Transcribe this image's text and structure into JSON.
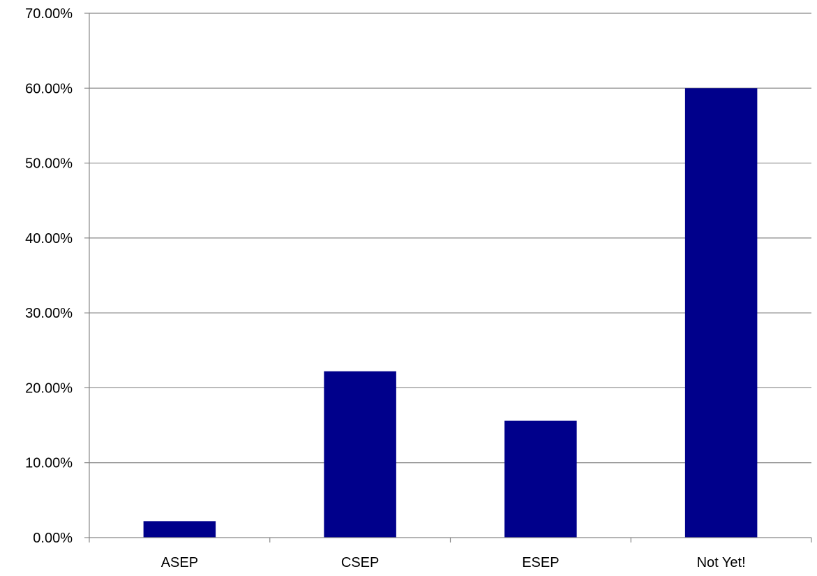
{
  "chart_data": {
    "type": "bar",
    "categories": [
      "ASEP",
      "CSEP",
      "ESEP",
      "Not Yet!"
    ],
    "values": [
      2.2,
      22.2,
      15.6,
      60.0
    ],
    "title": "",
    "xlabel": "",
    "ylabel": "",
    "ylim": [
      0,
      70
    ],
    "yticks": [
      0,
      10,
      20,
      30,
      40,
      50,
      60,
      70
    ],
    "ytick_labels": [
      "0.00%",
      "10.00%",
      "20.00%",
      "30.00%",
      "40.00%",
      "50.00%",
      "60.00%",
      "70.00%"
    ],
    "grid": true,
    "legend": "none",
    "bar_color": "#00008B"
  }
}
